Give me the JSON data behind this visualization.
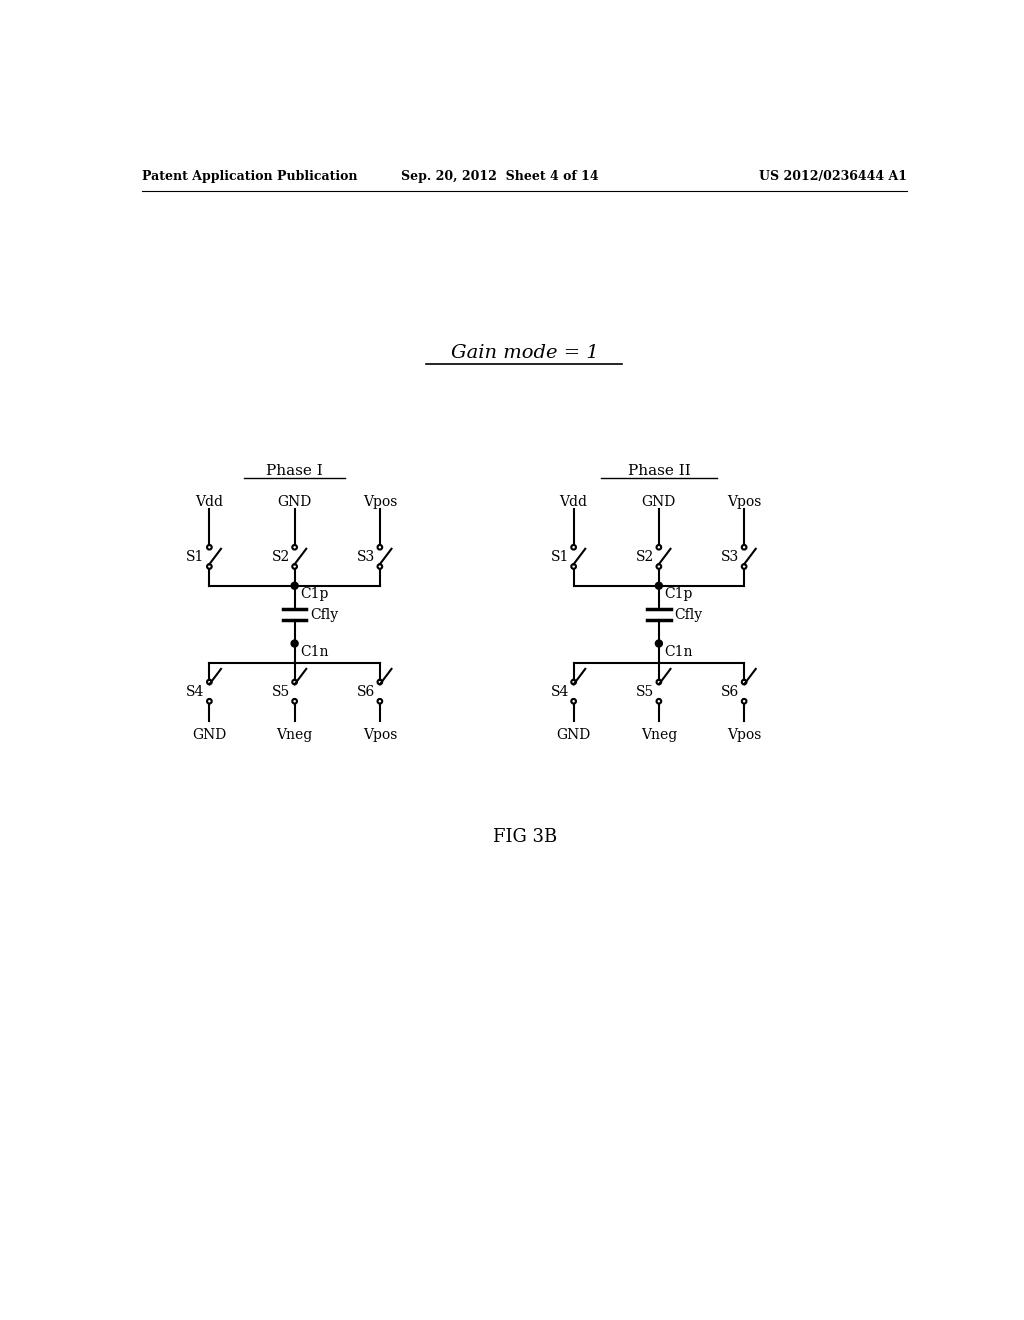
{
  "header_left": "Patent Application Publication",
  "header_center": "Sep. 20, 2012  Sheet 4 of 14",
  "header_right": "US 2012/0236444 A1",
  "title": "Gain mode = 1",
  "phase1_label": "Phase I",
  "phase2_label": "Phase II",
  "fig_label": "FIG 3B",
  "background": "#ffffff",
  "line_color": "#000000",
  "font_color": "#000000"
}
